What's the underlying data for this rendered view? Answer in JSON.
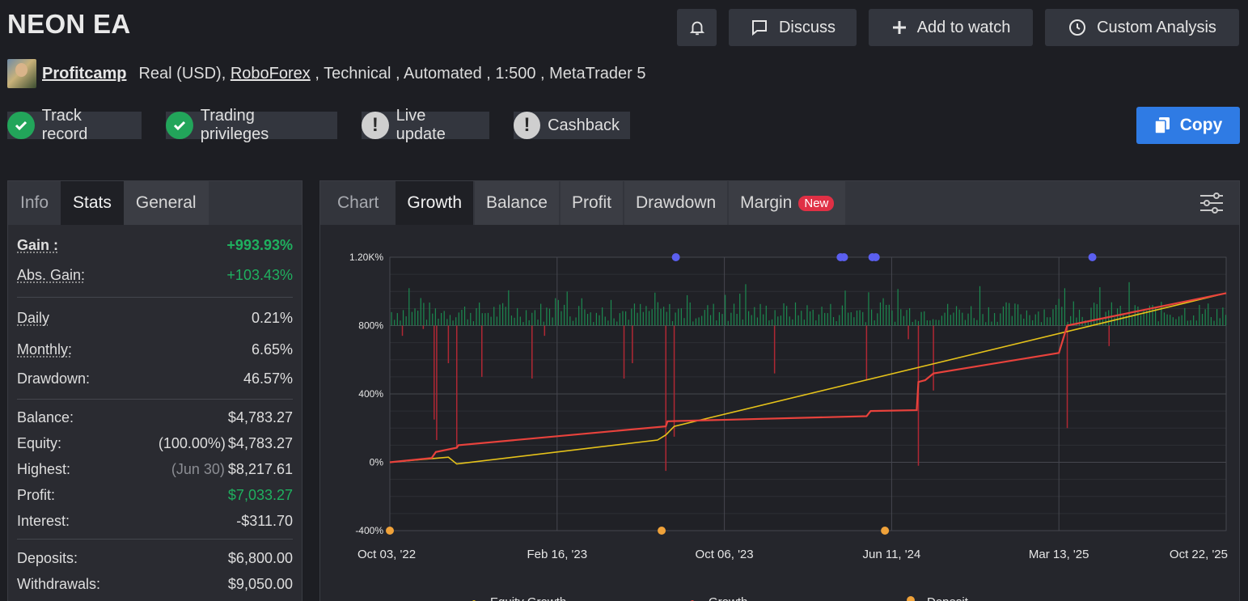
{
  "header": {
    "title": "NEON EA",
    "buttons": {
      "discuss": "Discuss",
      "watch": "Add to watch",
      "analysis": "Custom Analysis",
      "copy": "Copy"
    }
  },
  "meta": {
    "owner": "Profitcamp",
    "account": "Real (USD), ",
    "broker": "RoboForex",
    "details": " , Technical , Automated , 1:500 , MetaTrader 5"
  },
  "badges": [
    {
      "label": "Track record",
      "status": "ok"
    },
    {
      "label": "Trading privileges",
      "status": "ok"
    },
    {
      "label": "Live update",
      "status": "warn"
    },
    {
      "label": "Cashback",
      "status": "warn"
    }
  ],
  "left_tabs": [
    "Info",
    "Stats",
    "General"
  ],
  "stats": {
    "gain": {
      "label": "Gain :",
      "value": "+993.93%"
    },
    "abs_gain": {
      "label": "Abs. Gain:",
      "value": "+103.43%"
    },
    "daily": {
      "label": "Daily",
      "value": "0.21%"
    },
    "monthly": {
      "label": "Monthly:",
      "value": "6.65%"
    },
    "drawdown": {
      "label": "Drawdown:",
      "value": "46.57%"
    },
    "balance": {
      "label": "Balance:",
      "value": "$4,783.27"
    },
    "equity": {
      "label": "Equity:",
      "pct": "(100.00%)",
      "value": "$4,783.27"
    },
    "highest": {
      "label": "Highest:",
      "date": "(Jun 30)",
      "value": "$8,217.61"
    },
    "profit": {
      "label": "Profit:",
      "value": "$7,033.27"
    },
    "interest": {
      "label": "Interest:",
      "value": "-$311.70"
    },
    "deposits": {
      "label": "Deposits:",
      "value": "$6,800.00"
    },
    "withdrawals": {
      "label": "Withdrawals:",
      "value": "$9,050.00"
    }
  },
  "chart_tabs": {
    "chart": "Chart",
    "growth": "Growth",
    "balance": "Balance",
    "profit": "Profit",
    "drawdown": "Drawdown",
    "margin": "Margin",
    "new_badge": "New"
  },
  "colors": {
    "growth": "#e8423c",
    "equity": "#e5c21a",
    "deposit": "#f0a23a",
    "withdrawal": "#5b5ff0",
    "bar_up": "#1c8a50",
    "bar_down": "#b02834"
  },
  "chart_data": {
    "type": "line",
    "x_ticks": [
      "Oct 03, '22",
      "Feb 16, '23",
      "Oct 06, '23",
      "Jun 11, '24",
      "Mar 13, '25",
      "Oct 22, '25"
    ],
    "y_ticks": [
      "1.20K%",
      "800%",
      "400%",
      "0%",
      "-400%"
    ],
    "ylim": [
      -400,
      1200
    ],
    "grid": true,
    "legend_position": "bottom",
    "series": [
      {
        "name": "Equity Growth",
        "x": [
          0,
          0.07,
          0.08,
          0.32,
          0.33,
          0.34,
          1.0
        ],
        "values": [
          0,
          30,
          -10,
          130,
          160,
          210,
          990
        ]
      },
      {
        "name": "Growth",
        "x": [
          0,
          0.05,
          0.055,
          0.08,
          0.082,
          0.33,
          0.332,
          0.57,
          0.575,
          0.63,
          0.632,
          0.64,
          0.65,
          0.8,
          0.81,
          1.0
        ],
        "values": [
          0,
          25,
          60,
          85,
          100,
          210,
          240,
          270,
          300,
          305,
          470,
          480,
          520,
          640,
          800,
          990
        ]
      },
      {
        "name": "Deposit",
        "x": [
          0,
          0.325,
          0.592
        ],
        "values": [
          -400,
          -400,
          -400
        ]
      }
    ],
    "withdrawal_markers": {
      "x": [
        0.342,
        0.539,
        0.543,
        0.577,
        0.581,
        0.84
      ],
      "values": [
        1200,
        1200,
        1200,
        1200,
        1200,
        1200
      ]
    },
    "daily_bars_baseline": 800,
    "daily_drops": {
      "x": [
        0.015,
        0.04,
        0.053,
        0.056,
        0.07,
        0.08,
        0.11,
        0.17,
        0.185,
        0.28,
        0.29,
        0.33,
        0.34,
        0.46,
        0.57,
        0.62,
        0.632,
        0.65,
        0.81,
        0.86
      ],
      "values": [
        740,
        780,
        250,
        130,
        580,
        80,
        500,
        490,
        740,
        490,
        580,
        -50,
        150,
        520,
        480,
        720,
        -20,
        420,
        200,
        680
      ]
    }
  }
}
